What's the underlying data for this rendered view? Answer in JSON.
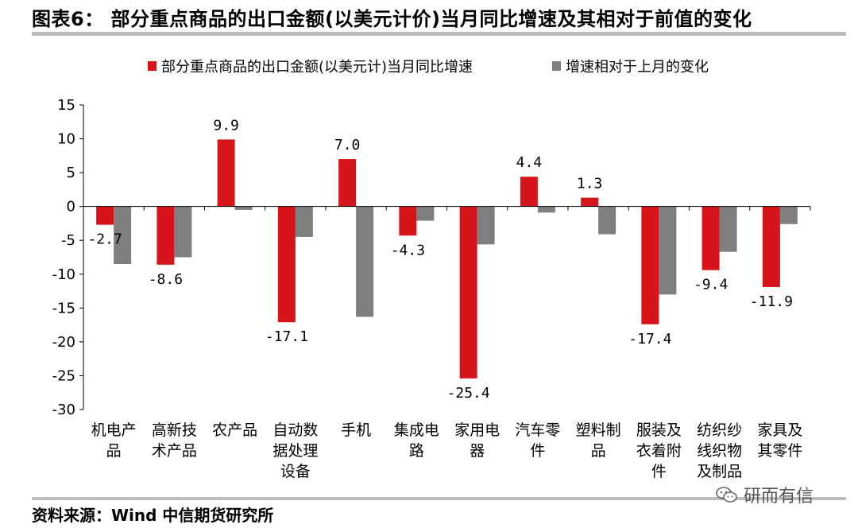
{
  "title": "图表6： 部分重点商品的出口金额(以美元计价)当月同比增速及其相对于前值的变化",
  "source": "资料来源：Wind 中信期货研究所",
  "watermark": "研而有信",
  "colors": {
    "series1": "#d7141a",
    "series2": "#7f7f7f",
    "rule": "#bdbdbd"
  },
  "chart_data": {
    "type": "bar",
    "title": "部分重点商品的出口金额(以美元计价)当月同比增速及其相对于前值的变化",
    "xlabel": "",
    "ylabel": "",
    "ylim": [
      -30,
      15
    ],
    "yticks": [
      15,
      10,
      5,
      0,
      -5,
      -10,
      -15,
      -20,
      -25,
      -30
    ],
    "grid": false,
    "legend_position": "top-center",
    "categories": [
      [
        "机电产",
        "品"
      ],
      [
        "高新技",
        "术产品"
      ],
      [
        "农产品"
      ],
      [
        "自动数",
        "据处理",
        "设备"
      ],
      [
        "手机"
      ],
      [
        "集成电",
        "路"
      ],
      [
        "家用电",
        "器"
      ],
      [
        "汽车零",
        "件"
      ],
      [
        "塑料制",
        "品"
      ],
      [
        "服装及",
        "衣着附",
        "件"
      ],
      [
        "纺织纱",
        "线织物",
        "及制品"
      ],
      [
        "家具及",
        "其零件"
      ]
    ],
    "series": [
      {
        "name": "部分重点商品的出口金额(以美元计)当月同比增速",
        "values": [
          -2.7,
          -8.6,
          9.9,
          -17.1,
          7.0,
          -4.3,
          -25.4,
          4.4,
          1.3,
          -17.4,
          -9.4,
          -11.9
        ],
        "labels": [
          "-2.7",
          "-8.6",
          "9.9",
          "-17.1",
          "7.0",
          "-4.3",
          "-25.4",
          "4.4",
          "1.3",
          "-17.4",
          "-9.4",
          "-11.9"
        ]
      },
      {
        "name": "增速相对于上月的变化",
        "values": [
          -8.5,
          -7.5,
          -0.5,
          -4.5,
          -16.3,
          -2.1,
          -5.6,
          -0.9,
          -4.1,
          -13.0,
          -6.7,
          -2.6
        ]
      }
    ]
  }
}
